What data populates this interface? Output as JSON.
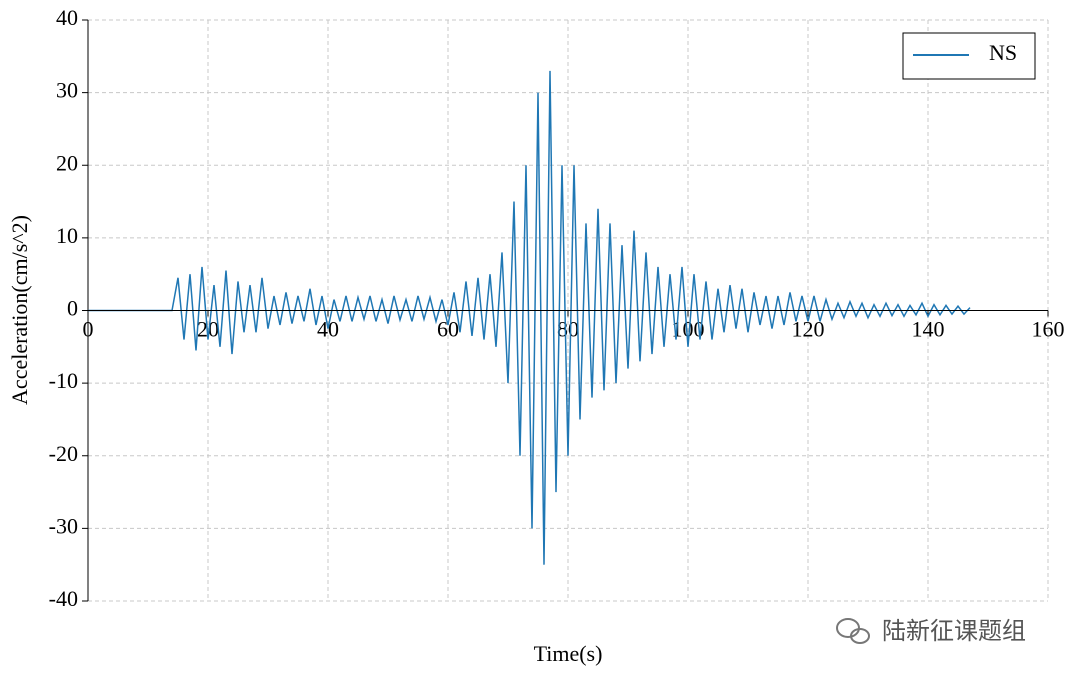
{
  "chart_data": {
    "type": "line",
    "xlabel": "Time(s)",
    "ylabel": "Acceleration(cm/s^2)",
    "x": [
      0,
      14,
      15,
      16,
      17,
      18,
      19,
      20,
      21,
      22,
      23,
      24,
      25,
      26,
      27,
      28,
      29,
      30,
      31,
      32,
      33,
      34,
      35,
      36,
      37,
      38,
      39,
      40,
      41,
      42,
      43,
      44,
      45,
      46,
      47,
      48,
      49,
      50,
      51,
      52,
      53,
      54,
      55,
      56,
      57,
      58,
      59,
      60,
      61,
      62,
      63,
      64,
      65,
      66,
      67,
      68,
      69,
      70,
      71,
      72,
      73,
      74,
      75,
      76,
      77,
      78,
      79,
      80,
      81,
      82,
      83,
      84,
      85,
      86,
      87,
      88,
      89,
      90,
      91,
      92,
      93,
      94,
      95,
      96,
      97,
      98,
      99,
      100,
      101,
      102,
      103,
      104,
      105,
      106,
      107,
      108,
      109,
      110,
      111,
      112,
      113,
      114,
      115,
      116,
      117,
      118,
      119,
      120,
      121,
      122,
      123,
      124,
      125,
      126,
      127,
      128,
      129,
      130,
      131,
      132,
      133,
      134,
      135,
      136,
      137,
      138,
      139,
      140,
      141,
      142,
      143,
      144,
      145,
      146,
      147
    ],
    "series": [
      {
        "name": "NS",
        "color": "#1f77b4",
        "values": [
          0,
          0,
          4.5,
          -4,
          5,
          -5.5,
          6,
          -4,
          3.5,
          -5,
          5.5,
          -6,
          4,
          -3,
          3.5,
          -3,
          4.5,
          -2.5,
          2,
          -2,
          2.5,
          -1.8,
          2,
          -1.5,
          3,
          -2,
          2,
          -2.5,
          1.5,
          -1.5,
          2,
          -1.5,
          1.8,
          -1.2,
          2,
          -1.5,
          1.5,
          -1.8,
          2,
          -1.3,
          1.5,
          -1.5,
          2,
          -1.2,
          1.8,
          -1.5,
          1.5,
          -2,
          2.5,
          -3,
          4,
          -3.5,
          4.5,
          -4,
          5,
          -5,
          8,
          -10,
          15,
          -20,
          20,
          -30,
          30,
          -35,
          33,
          -25,
          20,
          -20,
          20,
          -15,
          12,
          -12,
          14,
          -11,
          12,
          -10,
          9,
          -8,
          11,
          -7,
          8,
          -6,
          6,
          -5,
          5,
          -4,
          6,
          -5,
          5,
          -4,
          4,
          -4,
          3,
          -3,
          3.5,
          -2.5,
          3,
          -3,
          2.5,
          -2,
          2,
          -2.5,
          2,
          -2,
          2.5,
          -1.5,
          2,
          -1.5,
          2,
          -1.5,
          1.5,
          -1.2,
          1,
          -1,
          1.2,
          -0.8,
          1,
          -1,
          0.8,
          -0.8,
          1,
          -0.7,
          0.8,
          -0.8,
          0.7,
          -0.6,
          1,
          -0.8,
          0.8,
          -0.6,
          0.7,
          -0.5,
          0.6,
          -0.5,
          0.4
        ]
      }
    ],
    "xlim": [
      0,
      160
    ],
    "xticks": [
      0,
      20,
      40,
      60,
      80,
      100,
      120,
      140,
      160
    ],
    "ylim": [
      -40,
      40
    ],
    "yticks": [
      -40,
      -30,
      -20,
      -10,
      0,
      10,
      20,
      30,
      40
    ],
    "grid": true,
    "legend": "upper right"
  },
  "watermark": "陆新征课题组"
}
